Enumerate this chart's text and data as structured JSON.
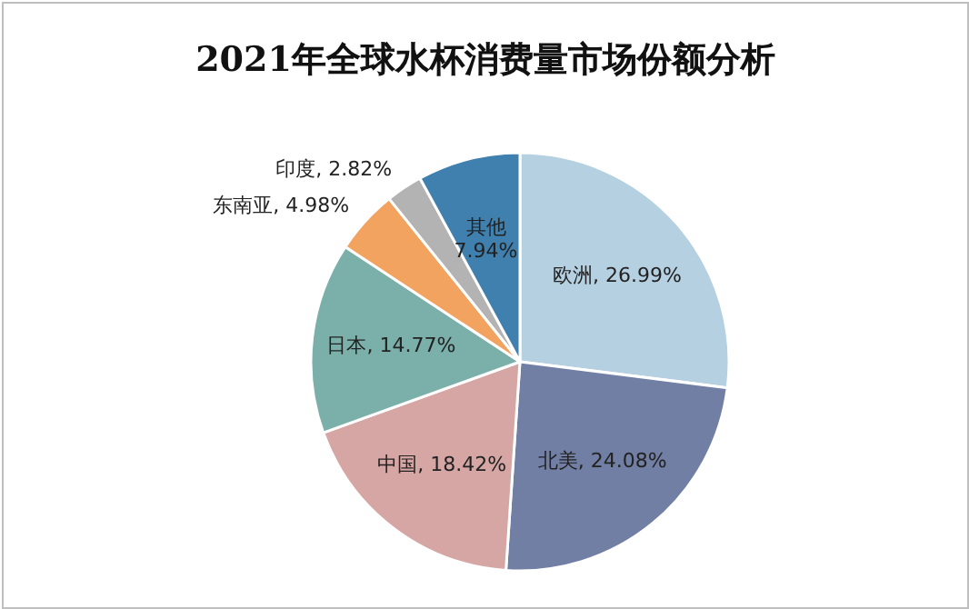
{
  "chart_data": {
    "type": "pie",
    "title": "2021年全球水杯消费量市场份额分析",
    "categories": [
      "欧洲",
      "北美",
      "中国",
      "日本",
      "东南亚",
      "印度",
      "其他"
    ],
    "values": [
      26.99,
      24.08,
      18.42,
      14.77,
      4.98,
      2.82,
      7.94
    ],
    "value_labels": [
      "26.99%",
      "24.08%",
      "18.42%",
      "14.77%",
      "4.98%",
      "2.82%",
      "7.94%"
    ],
    "colors": [
      "#b5d0e1",
      "#717fa4",
      "#d5a6a4",
      "#7bb0aa",
      "#f2a360",
      "#b3b3b3",
      "#3f80af"
    ]
  }
}
